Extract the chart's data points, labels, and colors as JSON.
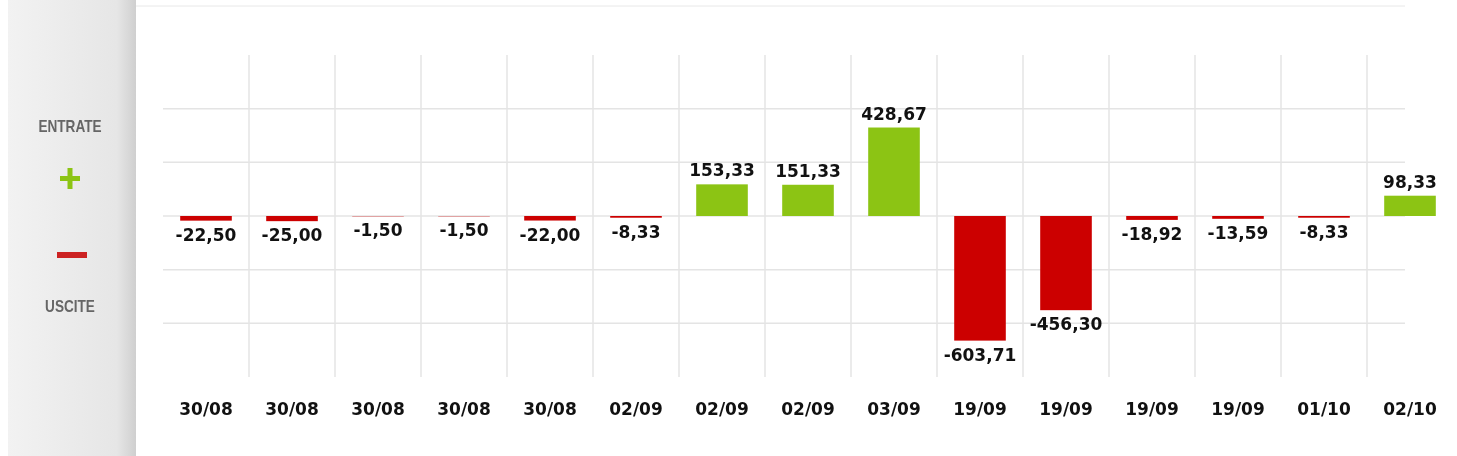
{
  "chart_data": {
    "type": "bar",
    "categories": [
      "30/08",
      "30/08",
      "30/08",
      "30/08",
      "30/08",
      "02/09",
      "02/09",
      "02/09",
      "03/09",
      "19/09",
      "19/09",
      "19/09",
      "19/09",
      "01/10",
      "02/10"
    ],
    "values": [
      -22.5,
      -25.0,
      -1.5,
      -1.5,
      -22.0,
      -8.33,
      153.33,
      151.33,
      428.67,
      -603.71,
      -456.3,
      -18.92,
      -13.59,
      -8.33,
      98.33
    ],
    "colors": [
      "#cc0000",
      "#cc0000",
      "#cc0000",
      "#cc0000",
      "#cc0000",
      "#cc0000",
      "#8cc414",
      "#8cc414",
      "#8cc414",
      "#cc0000",
      "#cc0000",
      "#cc0000",
      "#cc0000",
      "#cc0000",
      "#8cc414"
    ],
    "value_labels": [
      "-22,50",
      "-25,00",
      "-1,50",
      "-1,50",
      "-22,00",
      "-8,33",
      "153,33",
      "151,33",
      "428,67",
      "-603,71",
      "-456,30",
      "-18,92",
      "-13,59",
      "-8,33",
      "98,33"
    ],
    "ylim": [
      -780,
      780
    ],
    "yticks": [
      {
        "value": -520,
        "label": null
      },
      {
        "value": -260,
        "label": null
      },
      {
        "value": 0,
        "label": null
      },
      {
        "value": 260,
        "label": null
      },
      {
        "value": 520,
        "label": null
      }
    ],
    "grid": true,
    "tick_labels": "x",
    "annotations": [
      "ENTRATE",
      "USCITE"
    ]
  }
}
